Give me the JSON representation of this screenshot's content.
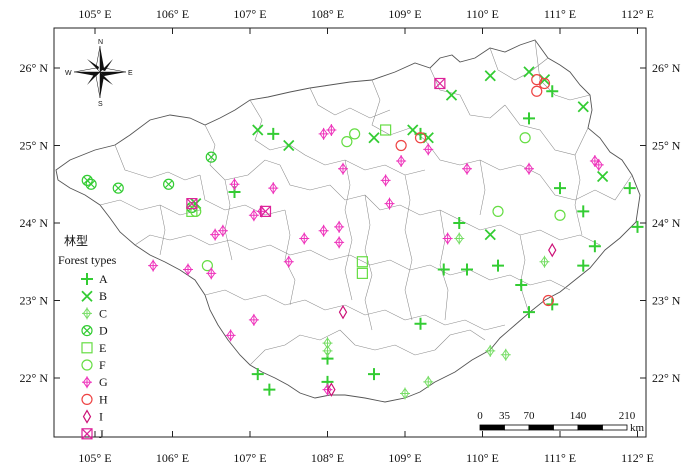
{
  "axes": {
    "lon_labels": [
      "105° E",
      "106° E",
      "107° E",
      "108° E",
      "109° E",
      "110° E",
      "111° E",
      "112° E"
    ],
    "lat_labels": [
      "26° N",
      "25° N",
      "24° N",
      "23° N",
      "22° N"
    ]
  },
  "compass": {
    "n": "N",
    "s": "S",
    "e": "E",
    "w": "W"
  },
  "legend": {
    "title_cn": "林型",
    "title_en": "Forest types",
    "items": [
      {
        "key": "A",
        "label": "A",
        "symbol": "plus",
        "color": "#33cc33"
      },
      {
        "key": "B",
        "label": "B",
        "symbol": "x",
        "color": "#33cc33"
      },
      {
        "key": "C",
        "label": "C",
        "symbol": "diamond-plus",
        "color": "#77dd66"
      },
      {
        "key": "D",
        "label": "D",
        "symbol": "circle-x",
        "color": "#33cc33"
      },
      {
        "key": "E",
        "label": "E",
        "symbol": "square",
        "color": "#66dd44"
      },
      {
        "key": "F",
        "label": "F",
        "symbol": "circle",
        "color": "#66dd44"
      },
      {
        "key": "G",
        "label": "G",
        "symbol": "diamond-plus",
        "color": "#ee33bb"
      },
      {
        "key": "H",
        "label": "H",
        "symbol": "circle",
        "color": "#ee4444"
      },
      {
        "key": "I",
        "label": "I",
        "symbol": "diamond",
        "color": "#cc1177"
      },
      {
        "key": "J",
        "label": "J",
        "symbol": "square-x",
        "color": "#dd2299"
      }
    ]
  },
  "scale_bar": {
    "labels": [
      "0",
      "35",
      "70",
      "140",
      "210"
    ],
    "unit": "km"
  },
  "sites": [
    {
      "type": "A",
      "lon": 107.3,
      "lat": 25.15
    },
    {
      "type": "A",
      "lon": 109.2,
      "lat": 25.15
    },
    {
      "type": "A",
      "lon": 109.7,
      "lat": 24.0
    },
    {
      "type": "A",
      "lon": 110.6,
      "lat": 25.35
    },
    {
      "type": "A",
      "lon": 110.9,
      "lat": 25.7
    },
    {
      "type": "A",
      "lon": 111.0,
      "lat": 24.45
    },
    {
      "type": "A",
      "lon": 111.3,
      "lat": 24.15
    },
    {
      "type": "A",
      "lon": 111.3,
      "lat": 23.45
    },
    {
      "type": "A",
      "lon": 111.45,
      "lat": 23.7
    },
    {
      "type": "A",
      "lon": 111.9,
      "lat": 24.45
    },
    {
      "type": "A",
      "lon": 112.0,
      "lat": 23.95
    },
    {
      "type": "A",
      "lon": 106.8,
      "lat": 24.4
    },
    {
      "type": "A",
      "lon": 109.5,
      "lat": 23.4
    },
    {
      "type": "A",
      "lon": 109.8,
      "lat": 23.4
    },
    {
      "type": "A",
      "lon": 110.2,
      "lat": 23.45
    },
    {
      "type": "A",
      "lon": 110.5,
      "lat": 23.2
    },
    {
      "type": "A",
      "lon": 110.6,
      "lat": 22.85
    },
    {
      "type": "A",
      "lon": 110.9,
      "lat": 22.95
    },
    {
      "type": "A",
      "lon": 109.2,
      "lat": 22.7
    },
    {
      "type": "A",
      "lon": 107.1,
      "lat": 22.05
    },
    {
      "type": "A",
      "lon": 107.25,
      "lat": 21.85
    },
    {
      "type": "A",
      "lon": 108.0,
      "lat": 21.95
    },
    {
      "type": "A",
      "lon": 108.0,
      "lat": 22.25
    },
    {
      "type": "A",
      "lon": 108.6,
      "lat": 22.05
    },
    {
      "type": "B",
      "lon": 107.1,
      "lat": 25.2
    },
    {
      "type": "B",
      "lon": 107.5,
      "lat": 25.0
    },
    {
      "type": "B",
      "lon": 108.6,
      "lat": 25.1
    },
    {
      "type": "B",
      "lon": 109.1,
      "lat": 25.2
    },
    {
      "type": "B",
      "lon": 109.3,
      "lat": 25.1
    },
    {
      "type": "B",
      "lon": 109.6,
      "lat": 25.65
    },
    {
      "type": "B",
      "lon": 110.1,
      "lat": 25.9
    },
    {
      "type": "B",
      "lon": 110.6,
      "lat": 25.95
    },
    {
      "type": "B",
      "lon": 110.8,
      "lat": 25.85
    },
    {
      "type": "B",
      "lon": 111.3,
      "lat": 25.5
    },
    {
      "type": "B",
      "lon": 111.55,
      "lat": 24.6
    },
    {
      "type": "B",
      "lon": 110.1,
      "lat": 23.85
    },
    {
      "type": "B",
      "lon": 106.3,
      "lat": 24.25
    },
    {
      "type": "C",
      "lon": 109.7,
      "lat": 23.8
    },
    {
      "type": "C",
      "lon": 110.8,
      "lat": 23.5
    },
    {
      "type": "C",
      "lon": 108.0,
      "lat": 22.45
    },
    {
      "type": "C",
      "lon": 108.0,
      "lat": 22.35
    },
    {
      "type": "C",
      "lon": 109.0,
      "lat": 21.8
    },
    {
      "type": "C",
      "lon": 109.3,
      "lat": 21.95
    },
    {
      "type": "C",
      "lon": 110.1,
      "lat": 22.35
    },
    {
      "type": "C",
      "lon": 110.3,
      "lat": 22.3
    },
    {
      "type": "D",
      "lon": 104.9,
      "lat": 24.55
    },
    {
      "type": "D",
      "lon": 104.95,
      "lat": 24.5
    },
    {
      "type": "D",
      "lon": 105.3,
      "lat": 24.45
    },
    {
      "type": "D",
      "lon": 105.95,
      "lat": 24.5
    },
    {
      "type": "D",
      "lon": 106.5,
      "lat": 24.85
    },
    {
      "type": "D",
      "lon": 106.25,
      "lat": 24.2
    },
    {
      "type": "E",
      "lon": 108.75,
      "lat": 25.2
    },
    {
      "type": "E",
      "lon": 108.45,
      "lat": 23.5
    },
    {
      "type": "E",
      "lon": 108.45,
      "lat": 23.35
    },
    {
      "type": "E",
      "lon": 106.25,
      "lat": 24.15
    },
    {
      "type": "F",
      "lon": 108.35,
      "lat": 25.15
    },
    {
      "type": "F",
      "lon": 108.25,
      "lat": 25.05
    },
    {
      "type": "F",
      "lon": 110.2,
      "lat": 24.15
    },
    {
      "type": "F",
      "lon": 110.55,
      "lat": 25.1
    },
    {
      "type": "F",
      "lon": 111.0,
      "lat": 24.1
    },
    {
      "type": "F",
      "lon": 106.45,
      "lat": 23.45
    },
    {
      "type": "F",
      "lon": 106.3,
      "lat": 24.15
    },
    {
      "type": "G",
      "lon": 107.95,
      "lat": 25.15
    },
    {
      "type": "G",
      "lon": 108.05,
      "lat": 25.2
    },
    {
      "type": "G",
      "lon": 108.2,
      "lat": 24.7
    },
    {
      "type": "G",
      "lon": 108.75,
      "lat": 24.55
    },
    {
      "type": "G",
      "lon": 108.95,
      "lat": 24.8
    },
    {
      "type": "G",
      "lon": 108.8,
      "lat": 24.25
    },
    {
      "type": "G",
      "lon": 109.3,
      "lat": 24.95
    },
    {
      "type": "G",
      "lon": 109.8,
      "lat": 24.7
    },
    {
      "type": "G",
      "lon": 110.6,
      "lat": 24.7
    },
    {
      "type": "G",
      "lon": 111.45,
      "lat": 24.8
    },
    {
      "type": "G",
      "lon": 111.5,
      "lat": 24.75
    },
    {
      "type": "G",
      "lon": 106.8,
      "lat": 24.5
    },
    {
      "type": "G",
      "lon": 107.3,
      "lat": 24.45
    },
    {
      "type": "G",
      "lon": 107.05,
      "lat": 24.1
    },
    {
      "type": "G",
      "lon": 107.15,
      "lat": 24.15
    },
    {
      "type": "G",
      "lon": 106.55,
      "lat": 23.85
    },
    {
      "type": "G",
      "lon": 106.65,
      "lat": 23.9
    },
    {
      "type": "G",
      "lon": 106.5,
      "lat": 23.35
    },
    {
      "type": "G",
      "lon": 106.2,
      "lat": 23.4
    },
    {
      "type": "G",
      "lon": 105.75,
      "lat": 23.45
    },
    {
      "type": "G",
      "lon": 107.5,
      "lat": 23.5
    },
    {
      "type": "G",
      "lon": 107.7,
      "lat": 23.8
    },
    {
      "type": "G",
      "lon": 107.95,
      "lat": 23.9
    },
    {
      "type": "G",
      "lon": 108.15,
      "lat": 23.95
    },
    {
      "type": "G",
      "lon": 108.15,
      "lat": 23.75
    },
    {
      "type": "G",
      "lon": 107.05,
      "lat": 22.75
    },
    {
      "type": "G",
      "lon": 106.75,
      "lat": 22.55
    },
    {
      "type": "G",
      "lon": 108.0,
      "lat": 21.85
    },
    {
      "type": "G",
      "lon": 109.55,
      "lat": 23.8
    },
    {
      "type": "H",
      "lon": 109.2,
      "lat": 25.1
    },
    {
      "type": "H",
      "lon": 108.95,
      "lat": 25.0
    },
    {
      "type": "H",
      "lon": 110.7,
      "lat": 25.85
    },
    {
      "type": "H",
      "lon": 110.8,
      "lat": 25.8
    },
    {
      "type": "H",
      "lon": 110.7,
      "lat": 25.7
    },
    {
      "type": "H",
      "lon": 110.85,
      "lat": 23.0
    },
    {
      "type": "I",
      "lon": 108.2,
      "lat": 22.85
    },
    {
      "type": "I",
      "lon": 110.9,
      "lat": 23.65
    },
    {
      "type": "I",
      "lon": 108.05,
      "lat": 21.85
    },
    {
      "type": "J",
      "lon": 109.45,
      "lat": 25.8
    },
    {
      "type": "J",
      "lon": 106.25,
      "lat": 24.25
    },
    {
      "type": "J",
      "lon": 107.2,
      "lat": 24.15
    }
  ]
}
